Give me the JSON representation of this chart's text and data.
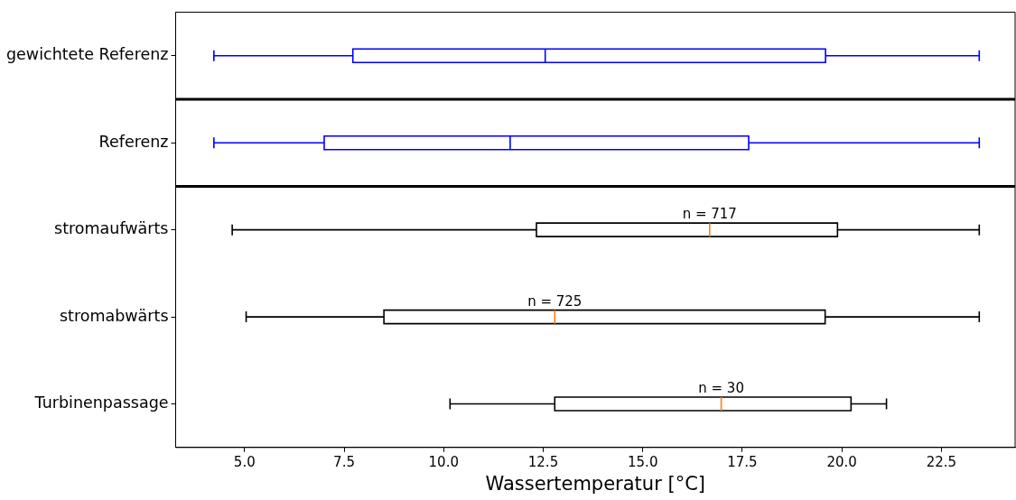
{
  "chart_data": {
    "type": "box",
    "orientation": "horizontal",
    "xlabel": "Wassertemperatur [°C]",
    "categories": [
      "gewichtete Referenz",
      "Referenz",
      "stromaufwärts",
      "stromabwärts",
      "Turbinenpassage"
    ],
    "xlim": [
      3.27,
      24.35
    ],
    "xticks": [
      {
        "value": 5,
        "label": "5.0"
      },
      {
        "value": 7.5,
        "label": "7.5"
      },
      {
        "value": 10,
        "label": "10.0"
      },
      {
        "value": 12.5,
        "label": "12.5"
      },
      {
        "value": 15,
        "label": "15.0"
      },
      {
        "value": 17.5,
        "label": "17.5"
      },
      {
        "value": 20,
        "label": "20.0"
      },
      {
        "value": 22.5,
        "label": "22.5"
      }
    ],
    "grid": false,
    "legend": false,
    "series": [
      {
        "color": "#0000ff",
        "boxes": [
          {
            "low": 4.23,
            "q1": 7.72,
            "median": 12.55,
            "q3": 19.59,
            "high": 23.45
          },
          {
            "low": 4.23,
            "q1": 7.0,
            "median": 11.67,
            "q3": 17.66,
            "high": 23.45
          },
          null,
          null,
          null
        ]
      },
      {
        "color": "#000000",
        "boxes": [
          null,
          null,
          {
            "low": 4.69,
            "q1": 12.33,
            "median": 16.68,
            "q3": 19.89,
            "high": 23.45
          },
          {
            "low": 5.04,
            "q1": 8.5,
            "median": 12.79,
            "q3": 19.58,
            "high": 23.45
          },
          {
            "low": 10.16,
            "q1": 12.79,
            "median": 16.97,
            "q3": 20.23,
            "high": 21.12
          }
        ]
      }
    ],
    "annotations": [
      {
        "text": "n = 717",
        "x": 16.68,
        "y": "stromaufwärts"
      },
      {
        "text": "n = 725",
        "x": 12.79,
        "y": "stromabwärts"
      },
      {
        "text": "n = 30",
        "x": 16.97,
        "y": "Turbinenpassage"
      }
    ]
  }
}
